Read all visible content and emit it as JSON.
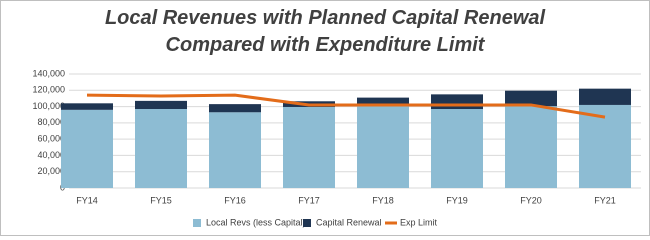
{
  "chart_data": {
    "type": "bar",
    "stacked": true,
    "title": "Local Revenues with Planned Capital Renewal Compared with Expenditure Limit",
    "categories": [
      "FY14",
      "FY15",
      "FY16",
      "FY17",
      "FY18",
      "FY19",
      "FY20",
      "FY21"
    ],
    "series": [
      {
        "name": "Local Revs (less Capital)",
        "type": "bar",
        "color": "#8dbcd3",
        "values": [
          96000,
          97000,
          93000,
          99500,
          102000,
          97000,
          100500,
          102000
        ]
      },
      {
        "name": "Capital Renewal",
        "type": "bar",
        "color": "#1f3552",
        "values": [
          8000,
          10000,
          10000,
          7000,
          9000,
          18000,
          19000,
          20000
        ]
      },
      {
        "name": "Exp Limit",
        "type": "line",
        "color": "#e36c1a",
        "values": [
          114000,
          113000,
          114000,
          102000,
          102000,
          102000,
          102000,
          87000
        ]
      }
    ],
    "ylim": [
      0,
      140000
    ],
    "yticks": [
      0,
      {
        "value": 20000,
        "label": "20,000"
      },
      {
        "value": 40000,
        "label": "40,000"
      },
      {
        "value": 60000,
        "label": "60,000"
      },
      {
        "value": 80000,
        "label": "80,000"
      },
      {
        "value": 100000,
        "label": "100,000"
      },
      {
        "value": 120000,
        "label": "120,000"
      },
      {
        "value": 140000,
        "label": "140,000"
      }
    ],
    "grid": true,
    "legend": "bottom"
  }
}
